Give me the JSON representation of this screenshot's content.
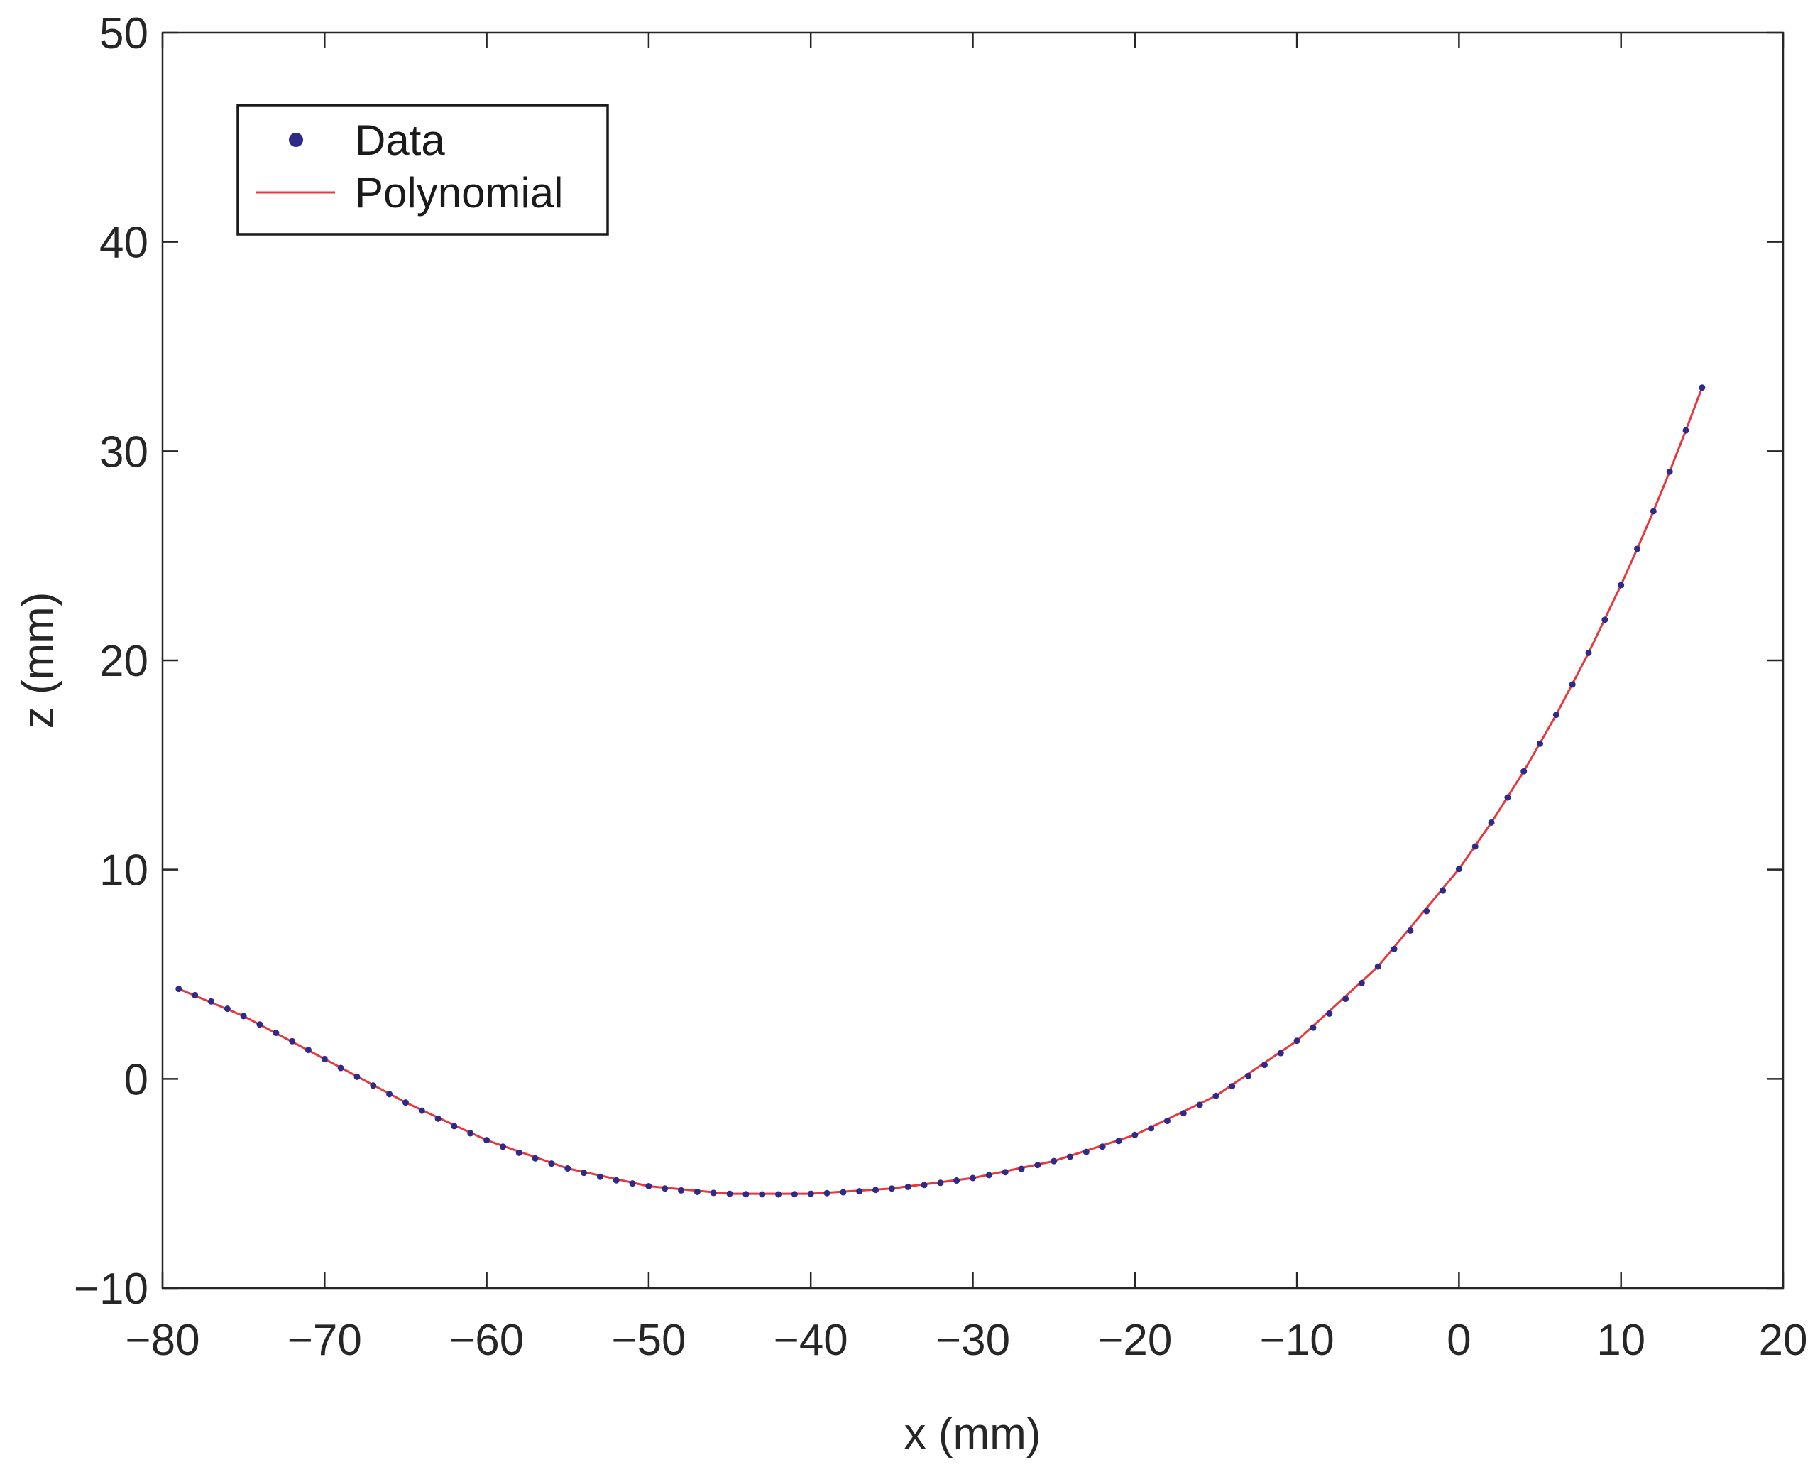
{
  "chart_data": {
    "type": "line",
    "title": "",
    "xlabel": "x (mm)",
    "ylabel": "z (mm)",
    "xlim": [
      -80,
      20
    ],
    "ylim": [
      -10,
      50
    ],
    "xticks": [
      -80,
      -70,
      -60,
      -50,
      -40,
      -30,
      -20,
      -10,
      0,
      10,
      20
    ],
    "yticks": [
      -10,
      0,
      10,
      20,
      30,
      40,
      50
    ],
    "xtick_labels": [
      "−80",
      "−70",
      "−60",
      "−50",
      "−40",
      "−30",
      "−20",
      "−10",
      "0",
      "10",
      "20"
    ],
    "ytick_labels": [
      "−10",
      "0",
      "10",
      "20",
      "30",
      "40",
      "50"
    ],
    "grid": false,
    "legend_position": "top-left",
    "colors": {
      "data": "#2e2a8a",
      "polynomial": "#e8383d",
      "axis": "#262626"
    },
    "series": [
      {
        "name": "Data",
        "style": "markers",
        "x": [
          -79,
          -78,
          -77,
          -76,
          -75,
          -74,
          -73,
          -72,
          -71,
          -70,
          -69,
          -68,
          -67,
          -66,
          -65,
          -64,
          -63,
          -62,
          -61,
          -60,
          -59,
          -58,
          -57,
          -56,
          -55,
          -54,
          -53,
          -52,
          -51,
          -50,
          -49,
          -48,
          -47,
          -46,
          -45,
          -44,
          -43,
          -42,
          -41,
          -40,
          -39,
          -38,
          -37,
          -36,
          -35,
          -34,
          -33,
          -32,
          -31,
          -30,
          -29,
          -28,
          -27,
          -26,
          -25,
          -24,
          -23,
          -22,
          -21,
          -20,
          -19,
          -18,
          -17,
          -16,
          -15,
          -14,
          -13,
          -12,
          -11,
          -10,
          -9,
          -8,
          -7,
          -6,
          -5,
          -4,
          -3,
          -2,
          -1,
          0,
          1,
          2,
          3,
          4,
          5,
          6,
          7,
          8,
          9,
          10,
          11,
          12,
          13,
          14,
          15
        ],
        "y": [
          4.3,
          4.0,
          3.7,
          3.35,
          3.0,
          2.6,
          2.2,
          1.8,
          1.38,
          0.95,
          0.52,
          0.1,
          -0.32,
          -0.73,
          -1.13,
          -1.52,
          -1.9,
          -2.26,
          -2.6,
          -2.93,
          -3.24,
          -3.53,
          -3.8,
          -4.05,
          -4.28,
          -4.49,
          -4.68,
          -4.85,
          -5.0,
          -5.13,
          -5.24,
          -5.33,
          -5.4,
          -5.45,
          -5.49,
          -5.51,
          -5.52,
          -5.52,
          -5.51,
          -5.49,
          -5.46,
          -5.42,
          -5.37,
          -5.31,
          -5.24,
          -5.16,
          -5.07,
          -4.97,
          -4.86,
          -4.74,
          -4.6,
          -4.46,
          -4.3,
          -4.12,
          -3.93,
          -3.72,
          -3.49,
          -3.24,
          -2.97,
          -2.68,
          -2.36,
          -2.01,
          -1.64,
          -1.24,
          -0.81,
          -0.35,
          0.14,
          0.67,
          1.23,
          1.82,
          2.45,
          3.12,
          3.83,
          4.58,
          5.37,
          6.21,
          7.09,
          8.02,
          9.0,
          10.03,
          11.11,
          12.25,
          13.45,
          14.7,
          16.02,
          17.4,
          18.85,
          20.36,
          21.94,
          23.6,
          25.33,
          27.13,
          29.02,
          30.99,
          33.04
        ]
      },
      {
        "name": "Polynomial",
        "style": "line",
        "x": [
          -79,
          -75,
          -70,
          -65,
          -60,
          -55,
          -50,
          -45,
          -40,
          -35,
          -30,
          -25,
          -20,
          -15,
          -10,
          -5,
          0,
          2,
          4,
          6,
          8,
          10,
          11,
          12,
          13,
          14,
          15
        ],
        "y": [
          4.3,
          3.0,
          0.95,
          -1.13,
          -2.93,
          -4.28,
          -5.13,
          -5.49,
          -5.49,
          -5.24,
          -4.74,
          -3.93,
          -2.68,
          -0.81,
          1.82,
          5.37,
          10.03,
          12.25,
          14.7,
          17.4,
          20.36,
          23.6,
          25.33,
          27.13,
          29.02,
          30.99,
          33.04
        ]
      }
    ]
  }
}
